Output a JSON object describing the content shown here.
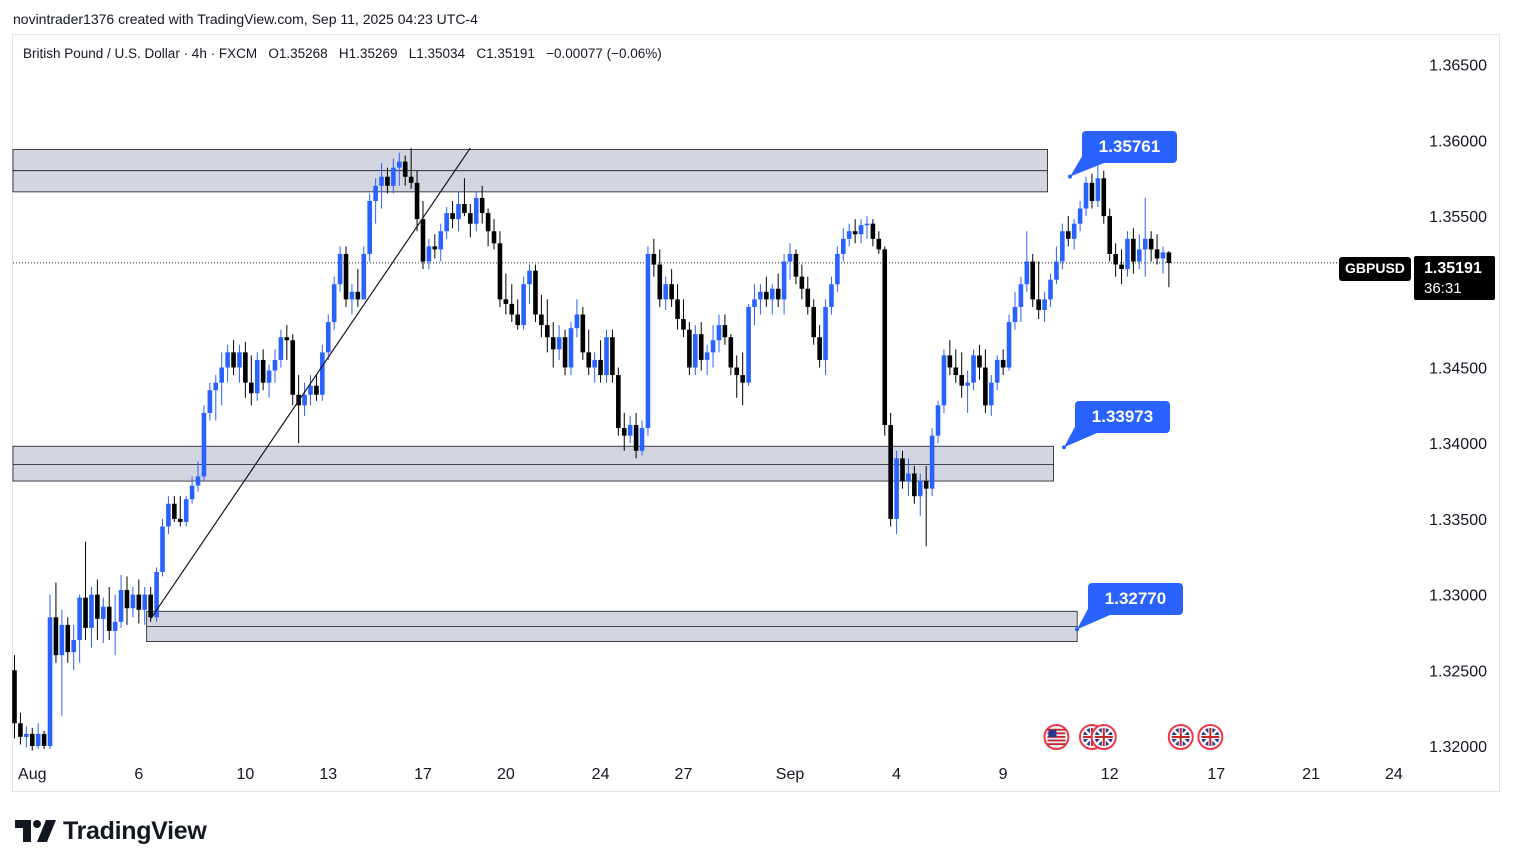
{
  "credit": "novintrader1376 created with TradingView.com, Sep 11, 2025 04:23 UTC-4",
  "symbol_info": {
    "name": "British Pound / U.S. Dollar · 4h · FXCM",
    "open": "O1.35268",
    "high": "H1.35269",
    "low": "L1.35034",
    "close": "C1.35191",
    "change": "−0.00077 (−0.06%)"
  },
  "price_tag": {
    "symbol": "GBPUSD",
    "price": "1.35191",
    "countdown": "36:31"
  },
  "callouts": [
    {
      "label": "1.35761",
      "value": 1.35761
    },
    {
      "label": "1.33973",
      "value": 1.33973
    },
    {
      "label": "1.32770",
      "value": 1.3277
    }
  ],
  "brand": {
    "name": "TradingView"
  },
  "colors": {
    "up": "#2962ff",
    "down": "#000000",
    "zone_fill": "#d1d4dc",
    "callout": "#2962ff"
  },
  "chart_data": {
    "type": "candlestick",
    "timeframe": "4h",
    "ylim": [
      1.32,
      1.3665
    ],
    "y_ticks": [
      "1.36500",
      "1.36000",
      "1.35500",
      "1.35000",
      "1.34500",
      "1.34000",
      "1.33500",
      "1.33000",
      "1.32500",
      "1.32000"
    ],
    "y_tick_values": [
      1.365,
      1.36,
      1.355,
      1.35,
      1.345,
      1.34,
      1.335,
      1.33,
      1.325,
      1.32
    ],
    "x_ticks": [
      "Aug",
      "6",
      "10",
      "13",
      "17",
      "20",
      "24",
      "27",
      "Sep",
      "4",
      "9",
      "12",
      "17",
      "21",
      "24"
    ],
    "x_tick_bars": [
      3,
      21,
      39,
      53,
      69,
      83,
      99,
      113,
      131,
      149,
      167,
      185,
      203,
      219,
      233
    ],
    "current_price": 1.35191,
    "zones": [
      {
        "from_bar": 0,
        "to_bar": 174,
        "low": 1.3566,
        "high": 1.3594,
        "mid": 1.358
      },
      {
        "from_bar": 0,
        "to_bar": 175,
        "low": 1.3375,
        "high": 1.3398,
        "mid": 1.3386
      },
      {
        "from_bar": 23,
        "to_bar": 179,
        "low": 1.3269,
        "high": 1.3289,
        "mid": 1.3279
      }
    ],
    "trendline": {
      "from": [
        23,
        1.3284
      ],
      "to": [
        77,
        1.3595
      ]
    },
    "events": [
      {
        "bar": 176,
        "flag": "US"
      },
      {
        "bar": 182,
        "flag": "GB"
      },
      {
        "bar": 184,
        "flag": "GB"
      },
      {
        "bar": 197,
        "flag": "GB"
      },
      {
        "bar": 202,
        "flag": "GB"
      }
    ],
    "ohlc": [
      [
        1.325,
        1.326,
        1.3205,
        1.3215
      ],
      [
        1.3215,
        1.3222,
        1.3201,
        1.3206
      ],
      [
        1.3206,
        1.3213,
        1.3199,
        1.3208
      ],
      [
        1.3208,
        1.3212,
        1.3197,
        1.32
      ],
      [
        1.32,
        1.3215,
        1.3198,
        1.3208
      ],
      [
        1.3208,
        1.321,
        1.3198,
        1.32
      ],
      [
        1.32,
        1.33,
        1.3198,
        1.3285
      ],
      [
        1.3285,
        1.3308,
        1.3255,
        1.326
      ],
      [
        1.326,
        1.329,
        1.322,
        1.328
      ],
      [
        1.328,
        1.3285,
        1.3255,
        1.3262
      ],
      [
        1.3262,
        1.328,
        1.325,
        1.327
      ],
      [
        1.327,
        1.33,
        1.3255,
        1.3298
      ],
      [
        1.3298,
        1.3335,
        1.327,
        1.3278
      ],
      [
        1.3278,
        1.3305,
        1.3265,
        1.33
      ],
      [
        1.33,
        1.331,
        1.327,
        1.3284
      ],
      [
        1.3284,
        1.3298,
        1.3268,
        1.3292
      ],
      [
        1.3292,
        1.3305,
        1.327,
        1.3276
      ],
      [
        1.3276,
        1.33,
        1.326,
        1.3282
      ],
      [
        1.3282,
        1.3313,
        1.3278,
        1.3303
      ],
      [
        1.3303,
        1.3312,
        1.328,
        1.3291
      ],
      [
        1.3291,
        1.3305,
        1.3285,
        1.33
      ],
      [
        1.33,
        1.331,
        1.3281,
        1.329
      ],
      [
        1.329,
        1.3305,
        1.328,
        1.33
      ],
      [
        1.33,
        1.3305,
        1.3282,
        1.3285
      ],
      [
        1.3285,
        1.3318,
        1.3282,
        1.3315
      ],
      [
        1.3315,
        1.335,
        1.3312,
        1.3345
      ],
      [
        1.3345,
        1.3365,
        1.334,
        1.336
      ],
      [
        1.336,
        1.3365,
        1.3348,
        1.335
      ],
      [
        1.335,
        1.3365,
        1.3345,
        1.3348
      ],
      [
        1.3348,
        1.3365,
        1.3345,
        1.3363
      ],
      [
        1.3363,
        1.3378,
        1.336,
        1.3372
      ],
      [
        1.3372,
        1.3388,
        1.3368,
        1.3378
      ],
      [
        1.3378,
        1.3425,
        1.3375,
        1.342
      ],
      [
        1.342,
        1.344,
        1.3415,
        1.3435
      ],
      [
        1.3435,
        1.3445,
        1.3415,
        1.344
      ],
      [
        1.344,
        1.346,
        1.3425,
        1.345
      ],
      [
        1.345,
        1.3465,
        1.344,
        1.346
      ],
      [
        1.346,
        1.3468,
        1.3445,
        1.345
      ],
      [
        1.345,
        1.3465,
        1.344,
        1.346
      ],
      [
        1.346,
        1.3467,
        1.343,
        1.344
      ],
      [
        1.344,
        1.3458,
        1.3425,
        1.3433
      ],
      [
        1.3433,
        1.346,
        1.3428,
        1.3455
      ],
      [
        1.3455,
        1.3462,
        1.3435,
        1.344
      ],
      [
        1.344,
        1.3452,
        1.343,
        1.3448
      ],
      [
        1.3448,
        1.3462,
        1.344,
        1.3455
      ],
      [
        1.3455,
        1.3475,
        1.345,
        1.347
      ],
      [
        1.347,
        1.3478,
        1.3455,
        1.3468
      ],
      [
        1.3468,
        1.3472,
        1.3425,
        1.3432
      ],
      [
        1.3432,
        1.3445,
        1.34,
        1.3425
      ],
      [
        1.3425,
        1.344,
        1.3418,
        1.3432
      ],
      [
        1.3432,
        1.3445,
        1.3425,
        1.3438
      ],
      [
        1.3438,
        1.3445,
        1.3428,
        1.3432
      ],
      [
        1.3432,
        1.3465,
        1.3428,
        1.346
      ],
      [
        1.346,
        1.3485,
        1.3455,
        1.348
      ],
      [
        1.348,
        1.351,
        1.3475,
        1.3505
      ],
      [
        1.3505,
        1.353,
        1.35,
        1.3525
      ],
      [
        1.3525,
        1.353,
        1.349,
        1.3495
      ],
      [
        1.3495,
        1.3505,
        1.3485,
        1.35
      ],
      [
        1.35,
        1.3515,
        1.349,
        1.3495
      ],
      [
        1.3495,
        1.353,
        1.3495,
        1.3525
      ],
      [
        1.3525,
        1.3565,
        1.352,
        1.356
      ],
      [
        1.356,
        1.3575,
        1.3545,
        1.357
      ],
      [
        1.357,
        1.3585,
        1.3555,
        1.3576
      ],
      [
        1.3576,
        1.3582,
        1.3565,
        1.357
      ],
      [
        1.357,
        1.3588,
        1.3565,
        1.3582
      ],
      [
        1.3582,
        1.3592,
        1.357,
        1.3586
      ],
      [
        1.3586,
        1.359,
        1.357,
        1.3576
      ],
      [
        1.3576,
        1.3595,
        1.3568,
        1.3572
      ],
      [
        1.3572,
        1.358,
        1.354,
        1.3548
      ],
      [
        1.3548,
        1.356,
        1.3515,
        1.352
      ],
      [
        1.352,
        1.3535,
        1.3515,
        1.353
      ],
      [
        1.353,
        1.3538,
        1.3522,
        1.3528
      ],
      [
        1.3528,
        1.3545,
        1.352,
        1.354
      ],
      [
        1.354,
        1.3556,
        1.3535,
        1.3552
      ],
      [
        1.3552,
        1.356,
        1.3542,
        1.3548
      ],
      [
        1.3548,
        1.3566,
        1.354,
        1.3558
      ],
      [
        1.3558,
        1.3575,
        1.355,
        1.3552
      ],
      [
        1.3552,
        1.3558,
        1.3536,
        1.3545
      ],
      [
        1.3545,
        1.3566,
        1.354,
        1.3562
      ],
      [
        1.3562,
        1.357,
        1.3545,
        1.3552
      ],
      [
        1.3552,
        1.3555,
        1.353,
        1.354
      ],
      [
        1.354,
        1.3548,
        1.3528,
        1.3532
      ],
      [
        1.3532,
        1.354,
        1.349,
        1.3495
      ],
      [
        1.3495,
        1.3512,
        1.3485,
        1.3492
      ],
      [
        1.3492,
        1.3505,
        1.348,
        1.3485
      ],
      [
        1.3485,
        1.3495,
        1.3475,
        1.3478
      ],
      [
        1.3478,
        1.351,
        1.3475,
        1.3505
      ],
      [
        1.3505,
        1.3518,
        1.3492,
        1.3514
      ],
      [
        1.3514,
        1.3518,
        1.348,
        1.3485
      ],
      [
        1.3485,
        1.3498,
        1.347,
        1.3478
      ],
      [
        1.3478,
        1.3495,
        1.346,
        1.347
      ],
      [
        1.347,
        1.348,
        1.345,
        1.3462
      ],
      [
        1.3462,
        1.3478,
        1.3455,
        1.347
      ],
      [
        1.347,
        1.3475,
        1.3445,
        1.345
      ],
      [
        1.345,
        1.348,
        1.3445,
        1.3476
      ],
      [
        1.3476,
        1.3495,
        1.347,
        1.3485
      ],
      [
        1.3485,
        1.349,
        1.3455,
        1.346
      ],
      [
        1.346,
        1.3475,
        1.3445,
        1.345
      ],
      [
        1.345,
        1.346,
        1.344,
        1.3455
      ],
      [
        1.3455,
        1.3468,
        1.344,
        1.3445
      ],
      [
        1.3445,
        1.3475,
        1.344,
        1.347
      ],
      [
        1.347,
        1.3475,
        1.344,
        1.3445
      ],
      [
        1.3445,
        1.345,
        1.3405,
        1.341
      ],
      [
        1.341,
        1.342,
        1.3395,
        1.3405
      ],
      [
        1.3405,
        1.3418,
        1.34,
        1.3412
      ],
      [
        1.3412,
        1.342,
        1.339,
        1.3395
      ],
      [
        1.3395,
        1.3415,
        1.3392,
        1.341
      ],
      [
        1.341,
        1.353,
        1.3405,
        1.3525
      ],
      [
        1.3525,
        1.3535,
        1.351,
        1.3518
      ],
      [
        1.3518,
        1.3528,
        1.349,
        1.3495
      ],
      [
        1.3495,
        1.351,
        1.3488,
        1.3505
      ],
      [
        1.3505,
        1.3515,
        1.349,
        1.3495
      ],
      [
        1.3495,
        1.3505,
        1.3475,
        1.3482
      ],
      [
        1.3482,
        1.3495,
        1.347,
        1.3475
      ],
      [
        1.3475,
        1.348,
        1.3445,
        1.345
      ],
      [
        1.345,
        1.3478,
        1.3445,
        1.3472
      ],
      [
        1.3472,
        1.348,
        1.3448,
        1.3455
      ],
      [
        1.3455,
        1.3465,
        1.3445,
        1.346
      ],
      [
        1.346,
        1.3478,
        1.345,
        1.3468
      ],
      [
        1.3468,
        1.3485,
        1.346,
        1.3478
      ],
      [
        1.3478,
        1.3485,
        1.3465,
        1.347
      ],
      [
        1.347,
        1.3472,
        1.3445,
        1.345
      ],
      [
        1.345,
        1.3458,
        1.343,
        1.3445
      ],
      [
        1.3445,
        1.346,
        1.3425,
        1.344
      ],
      [
        1.344,
        1.3492,
        1.3438,
        1.349
      ],
      [
        1.349,
        1.3505,
        1.3478,
        1.3495
      ],
      [
        1.3495,
        1.3505,
        1.3485,
        1.35
      ],
      [
        1.35,
        1.351,
        1.349,
        1.3495
      ],
      [
        1.3495,
        1.3505,
        1.3485,
        1.3502
      ],
      [
        1.3502,
        1.3512,
        1.349,
        1.3495
      ],
      [
        1.3495,
        1.3525,
        1.3485,
        1.352
      ],
      [
        1.352,
        1.3532,
        1.3508,
        1.3525
      ],
      [
        1.3525,
        1.3528,
        1.3505,
        1.351
      ],
      [
        1.351,
        1.3518,
        1.3495,
        1.3502
      ],
      [
        1.3502,
        1.351,
        1.3485,
        1.349
      ],
      [
        1.349,
        1.3495,
        1.3465,
        1.347
      ],
      [
        1.347,
        1.3478,
        1.345,
        1.3455
      ],
      [
        1.3455,
        1.3495,
        1.3445,
        1.349
      ],
      [
        1.349,
        1.351,
        1.3485,
        1.3505
      ],
      [
        1.3505,
        1.353,
        1.35,
        1.3525
      ],
      [
        1.3525,
        1.3542,
        1.352,
        1.3535
      ],
      [
        1.3535,
        1.3545,
        1.353,
        1.354
      ],
      [
        1.354,
        1.3548,
        1.3532,
        1.3538
      ],
      [
        1.3538,
        1.3548,
        1.3532,
        1.3544
      ],
      [
        1.3544,
        1.355,
        1.3535,
        1.3545
      ],
      [
        1.3545,
        1.3548,
        1.353,
        1.3535
      ],
      [
        1.3535,
        1.354,
        1.3525,
        1.3528
      ],
      [
        1.3528,
        1.353,
        1.3405,
        1.3412
      ],
      [
        1.3412,
        1.342,
        1.3345,
        1.335
      ],
      [
        1.335,
        1.3395,
        1.334,
        1.339
      ],
      [
        1.339,
        1.3395,
        1.337,
        1.3375
      ],
      [
        1.3375,
        1.339,
        1.3365,
        1.338
      ],
      [
        1.338,
        1.3385,
        1.336,
        1.3365
      ],
      [
        1.3365,
        1.338,
        1.3352,
        1.3375
      ],
      [
        1.3375,
        1.3385,
        1.3332,
        1.337
      ],
      [
        1.337,
        1.341,
        1.3365,
        1.3405
      ],
      [
        1.3405,
        1.3428,
        1.34,
        1.3425
      ],
      [
        1.3425,
        1.3462,
        1.342,
        1.3458
      ],
      [
        1.3458,
        1.3468,
        1.3445,
        1.345
      ],
      [
        1.345,
        1.3462,
        1.344,
        1.3445
      ],
      [
        1.3445,
        1.346,
        1.343,
        1.3438
      ],
      [
        1.3438,
        1.3448,
        1.342,
        1.344
      ],
      [
        1.344,
        1.3462,
        1.3435,
        1.3458
      ],
      [
        1.3458,
        1.3465,
        1.3442,
        1.345
      ],
      [
        1.345,
        1.3462,
        1.342,
        1.3425
      ],
      [
        1.3425,
        1.3445,
        1.3418,
        1.344
      ],
      [
        1.344,
        1.3458,
        1.3435,
        1.3455
      ],
      [
        1.3455,
        1.3462,
        1.3445,
        1.345
      ],
      [
        1.345,
        1.3485,
        1.3448,
        1.348
      ],
      [
        1.348,
        1.35,
        1.3475,
        1.349
      ],
      [
        1.349,
        1.351,
        1.348,
        1.3505
      ],
      [
        1.3505,
        1.354,
        1.35,
        1.352
      ],
      [
        1.352,
        1.3525,
        1.349,
        1.3495
      ],
      [
        1.3495,
        1.352,
        1.3482,
        1.3488
      ],
      [
        1.3488,
        1.35,
        1.348,
        1.3495
      ],
      [
        1.3495,
        1.3512,
        1.349,
        1.3508
      ],
      [
        1.3508,
        1.353,
        1.3505,
        1.352
      ],
      [
        1.352,
        1.3545,
        1.3515,
        1.354
      ],
      [
        1.354,
        1.355,
        1.353,
        1.3535
      ],
      [
        1.3535,
        1.3548,
        1.3528,
        1.3545
      ],
      [
        1.3545,
        1.356,
        1.354,
        1.3555
      ],
      [
        1.3555,
        1.3576,
        1.355,
        1.3572
      ],
      [
        1.3572,
        1.3578,
        1.3555,
        1.356
      ],
      [
        1.356,
        1.359,
        1.3556,
        1.3575
      ],
      [
        1.3575,
        1.358,
        1.3545,
        1.355
      ],
      [
        1.355,
        1.3555,
        1.352,
        1.3525
      ],
      [
        1.3525,
        1.3532,
        1.351,
        1.3518
      ],
      [
        1.3518,
        1.3528,
        1.3505,
        1.3515
      ],
      [
        1.3515,
        1.354,
        1.351,
        1.3535
      ],
      [
        1.3535,
        1.3542,
        1.3512,
        1.352
      ],
      [
        1.352,
        1.3538,
        1.3515,
        1.3528
      ],
      [
        1.3528,
        1.3562,
        1.351,
        1.3535
      ],
      [
        1.3535,
        1.354,
        1.352,
        1.3528
      ],
      [
        1.3528,
        1.3538,
        1.3518,
        1.3522
      ],
      [
        1.3522,
        1.353,
        1.3512,
        1.3526
      ],
      [
        1.3526,
        1.3527,
        1.3503,
        1.3519
      ]
    ]
  }
}
